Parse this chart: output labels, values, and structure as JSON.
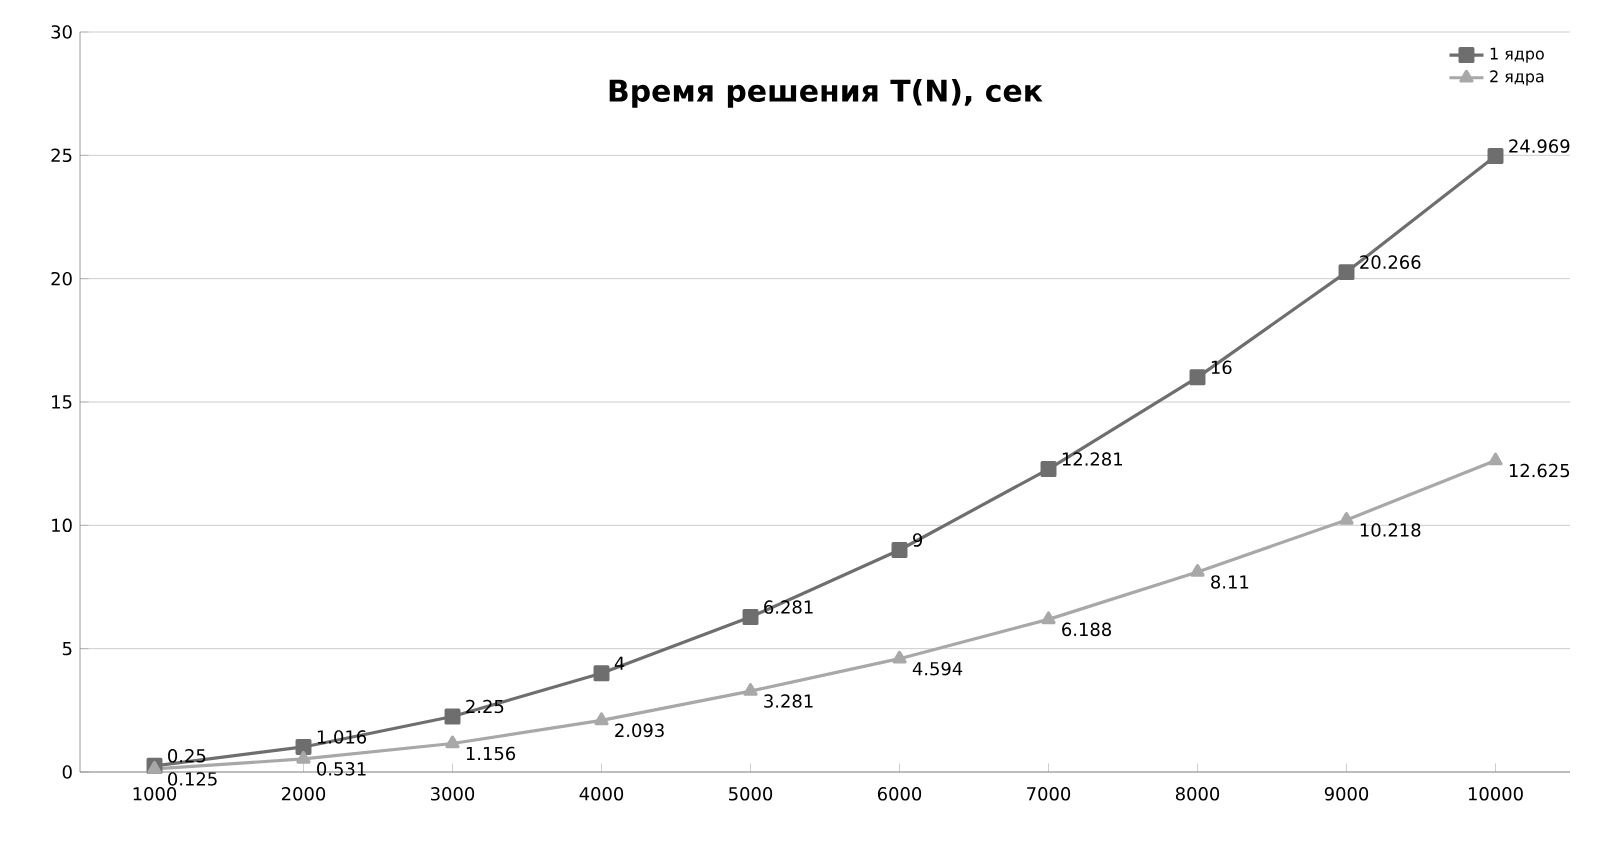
{
  "chart_data": {
    "type": "line",
    "title": "Время решения T(N), сек",
    "categories": [
      "1000",
      "2000",
      "3000",
      "4000",
      "5000",
      "6000",
      "7000",
      "8000",
      "9000",
      "10000"
    ],
    "series": [
      {
        "name": "1 ядро",
        "color": "#6e6e6e",
        "marker": "square",
        "values": [
          0.25,
          1.016,
          2.25,
          4,
          6.281,
          9,
          12.281,
          16,
          20.266,
          24.969
        ]
      },
      {
        "name": "2 ядра",
        "color": "#a8a8a8",
        "marker": "triangle",
        "values": [
          0.125,
          0.531,
          1.156,
          2.093,
          3.281,
          4.594,
          6.188,
          8.11,
          10.218,
          12.625
        ]
      }
    ],
    "ylim": [
      0,
      30
    ],
    "yticks": [
      0,
      5,
      10,
      15,
      20,
      25,
      30
    ],
    "grid": "y",
    "legend": "top right",
    "data_labels": true,
    "line_style": "solid"
  }
}
